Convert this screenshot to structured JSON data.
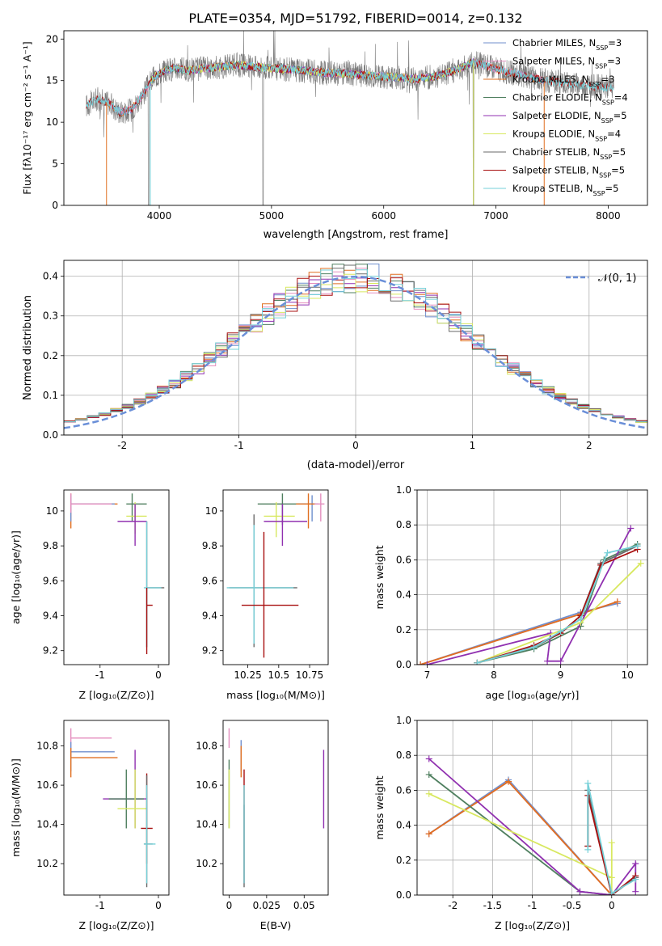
{
  "figure": {
    "title": "PLATE=0354, MJD=51792, FIBERID=0014, z=0.132"
  },
  "model_colors": {
    "Chabrier MILES": "#6f8fce",
    "Salpeter MILES": "#e48fbf",
    "Kroupa MILES": "#e06f20",
    "Chabrier ELODIE": "#4f7f5f",
    "Salpeter ELODIE": "#9030b0",
    "Kroupa ELODIE": "#d8e860",
    "Chabrier STELIB": "#6a6a6a",
    "Salpeter STELIB": "#a81010",
    "Kroupa STELIB": "#76d0d8"
  },
  "chart_data": [
    {
      "id": "spectrum",
      "type": "line",
      "title": "PLATE=0354, MJD=51792, FIBERID=0014, z=0.132",
      "xlabel": "wavelength [Angstrom, rest frame]",
      "ylabel": "Flux [fλ10⁻¹⁷ erg cm⁻² s⁻¹ A⁻¹]",
      "xlim": [
        3150,
        8350
      ],
      "ylim": [
        0,
        21
      ],
      "xticks": [
        4000,
        5000,
        6000,
        7000,
        8000
      ],
      "yticks": [
        0,
        5,
        10,
        15,
        20
      ],
      "grid": false,
      "legend_placement": "right",
      "legend": [
        "Chabrier MILES, N_SSP=3",
        "Salpeter MILES, N_SSP=3",
        "Kroupa MILES, N_SSP=3",
        "Chabrier ELODIE, N_SSP=4",
        "Salpeter ELODIE, N_SSP=5",
        "Kroupa ELODIE, N_SSP=4",
        "Chabrier STELIB, N_SSP=5",
        "Salpeter STELIB, N_SSP=5",
        "Kroupa STELIB, N_SSP=5"
      ],
      "continuum": {
        "x": [
          3350,
          3450,
          3550,
          3650,
          3750,
          3850,
          3950,
          4050,
          4150,
          4250,
          4350,
          4500,
          4700,
          4900,
          5100,
          5300,
          5500,
          5700,
          5900,
          6100,
          6300,
          6500,
          6700,
          6800,
          6900,
          7000,
          7100,
          7200,
          7400,
          7600,
          7800,
          8000,
          8050
        ],
        "y": [
          12.0,
          12.8,
          12.3,
          11.2,
          11.5,
          13.2,
          15.4,
          16.2,
          16.5,
          16.2,
          16.4,
          16.6,
          16.9,
          16.6,
          16.4,
          16.2,
          15.9,
          15.8,
          15.6,
          15.4,
          15.2,
          15.6,
          16.6,
          17.2,
          16.8,
          16.4,
          16.0,
          15.8,
          15.1,
          14.7,
          14.4,
          14.2,
          14.1
        ]
      }
    },
    {
      "id": "residuals",
      "type": "line",
      "xlabel": "(data-model)/error",
      "ylabel": "Normed distribution",
      "xlim": [
        -2.5,
        2.5
      ],
      "ylim": [
        0,
        0.44
      ],
      "xticks": [
        -2,
        -1,
        0,
        1,
        2
      ],
      "yticks": [
        0.0,
        0.1,
        0.2,
        0.3,
        0.4
      ],
      "grid": true,
      "legend_placement": "top-right",
      "legend": [
        "𝒩(0, 1)"
      ],
      "series": [
        {
          "name": "𝒩(0, 1)",
          "style": "dashed",
          "color": "#6a8fd8",
          "mean": 0,
          "sigma": 1
        }
      ]
    },
    {
      "id": "age-vs-Z",
      "type": "scatter",
      "xlabel": "Z [log₁₀(Z/Z⊙)]",
      "ylabel": "age  [log₁₀(age/yr)]",
      "xlim": [
        -1.62,
        0.18
      ],
      "ylim": [
        9.12,
        10.12
      ],
      "xticks": [
        -1,
        0
      ],
      "yticks": [
        9.2,
        9.4,
        9.6,
        9.8,
        10.0
      ],
      "grid": false,
      "points": [
        {
          "model": "Kroupa MILES",
          "x": -1.5,
          "y": 10.04,
          "xerr": [
            0.0,
            0.8
          ],
          "yerr": [
            0.14,
            0.06
          ]
        },
        {
          "model": "Chabrier MILES",
          "x": -1.5,
          "y": 10.04,
          "xerr": [
            0.0,
            0.75
          ],
          "yerr": [
            0.1,
            0.05
          ]
        },
        {
          "model": "Salpeter MILES",
          "x": -1.5,
          "y": 10.04,
          "xerr": [
            0.0,
            0.7
          ],
          "yerr": [
            0.05,
            0.06
          ]
        },
        {
          "model": "Chabrier ELODIE",
          "x": -0.45,
          "y": 10.04,
          "xerr": [
            0.1,
            0.25
          ],
          "yerr": [
            0.1,
            0.06
          ]
        },
        {
          "model": "Kroupa ELODIE",
          "x": -0.4,
          "y": 9.97,
          "xerr": [
            0.15,
            0.2
          ],
          "yerr": [
            0.1,
            0.08
          ]
        },
        {
          "model": "Salpeter ELODIE",
          "x": -0.4,
          "y": 9.94,
          "xerr": [
            0.3,
            0.2
          ],
          "yerr": [
            0.14,
            0.1
          ]
        },
        {
          "model": "Chabrier STELIB",
          "x": -0.2,
          "y": 9.56,
          "xerr": [
            0.0,
            0.3
          ],
          "yerr": [
            0.34,
            0.38
          ]
        },
        {
          "model": "Kroupa STELIB",
          "x": -0.2,
          "y": 9.56,
          "xerr": [
            0.05,
            0.25
          ],
          "yerr": [
            0.34,
            0.38
          ]
        },
        {
          "model": "Salpeter STELIB",
          "x": -0.2,
          "y": 9.46,
          "xerr": [
            0.0,
            0.1
          ],
          "yerr": [
            0.28,
            0.1
          ]
        }
      ]
    },
    {
      "id": "age-vs-mass",
      "type": "scatter",
      "xlabel": "mass [log₁₀(M/M⊙)]",
      "ylabel": "",
      "xlim": [
        10.05,
        10.9
      ],
      "ylim": [
        9.12,
        10.12
      ],
      "xticks": [
        10.25,
        10.5,
        10.75
      ],
      "yticks": [
        9.2,
        9.4,
        9.6,
        9.8,
        10.0
      ],
      "grid": false,
      "points": [
        {
          "model": "Chabrier STELIB",
          "x": 10.3,
          "y": 9.56,
          "xerr": [
            0.2,
            0.35
          ],
          "yerr": [
            0.34,
            0.42
          ]
        },
        {
          "model": "Kroupa STELIB",
          "x": 10.3,
          "y": 9.56,
          "xerr": [
            0.22,
            0.32
          ],
          "yerr": [
            0.32,
            0.36
          ]
        },
        {
          "model": "Salpeter STELIB",
          "x": 10.38,
          "y": 9.46,
          "xerr": [
            0.18,
            0.28
          ],
          "yerr": [
            0.3,
            0.42
          ]
        },
        {
          "model": "Chabrier ELODIE",
          "x": 10.53,
          "y": 10.04,
          "xerr": [
            0.2,
            0.25
          ],
          "yerr": [
            0.12,
            0.06
          ]
        },
        {
          "model": "Kroupa ELODIE",
          "x": 10.48,
          "y": 9.97,
          "xerr": [
            0.1,
            0.15
          ],
          "yerr": [
            0.12,
            0.08
          ]
        },
        {
          "model": "Salpeter ELODIE",
          "x": 10.53,
          "y": 9.94,
          "xerr": [
            0.15,
            0.2
          ],
          "yerr": [
            0.14,
            0.1
          ]
        },
        {
          "model": "Chabrier MILES",
          "x": 10.77,
          "y": 10.04,
          "xerr": [
            0.1,
            0.05
          ],
          "yerr": [
            0.1,
            0.05
          ]
        },
        {
          "model": "Kroupa MILES",
          "x": 10.74,
          "y": 10.04,
          "xerr": [
            0.1,
            0.06
          ],
          "yerr": [
            0.14,
            0.06
          ]
        },
        {
          "model": "Salpeter MILES",
          "x": 10.84,
          "y": 10.04,
          "xerr": [
            0.05,
            0.03
          ],
          "yerr": [
            0.1,
            0.06
          ]
        }
      ]
    },
    {
      "id": "weight-vs-age",
      "type": "line",
      "xlabel": "age  [log₁₀(age/yr)]",
      "ylabel": "mass weight",
      "xlim": [
        6.85,
        10.3
      ],
      "ylim": [
        0,
        1.0
      ],
      "xticks": [
        7,
        8,
        9,
        10
      ],
      "yticks": [
        0.0,
        0.2,
        0.4,
        0.6,
        0.8,
        1.0
      ],
      "grid": true,
      "series": [
        {
          "model": "Chabrier MILES",
          "x": [
            6.9,
            9.3,
            9.85
          ],
          "y": [
            0.0,
            0.3,
            0.35
          ]
        },
        {
          "model": "Salpeter MILES",
          "x": [
            6.9,
            9.3,
            9.85
          ],
          "y": [
            0.0,
            0.29,
            0.36
          ]
        },
        {
          "model": "Kroupa MILES",
          "x": [
            6.9,
            9.3,
            9.85
          ],
          "y": [
            0.0,
            0.29,
            0.36
          ]
        },
        {
          "model": "Chabrier ELODIE",
          "x": [
            7.75,
            8.6,
            9.3,
            9.65,
            10.15
          ],
          "y": [
            0.01,
            0.09,
            0.22,
            0.6,
            0.69
          ]
        },
        {
          "model": "Salpeter ELODIE",
          "x": [
            7.0,
            8.85,
            8.8,
            9.0,
            10.05
          ],
          "y": [
            0.0,
            0.18,
            0.02,
            0.02,
            0.78
          ]
        },
        {
          "model": "Kroupa ELODIE",
          "x": [
            7.75,
            9.3,
            10.2
          ],
          "y": [
            0.01,
            0.24,
            0.58
          ]
        },
        {
          "model": "Chabrier STELIB",
          "x": [
            7.75,
            8.6,
            9.0,
            9.3,
            9.6,
            10.15
          ],
          "y": [
            0.01,
            0.1,
            0.18,
            0.28,
            0.58,
            0.68
          ]
        },
        {
          "model": "Salpeter STELIB",
          "x": [
            7.75,
            8.6,
            9.0,
            9.3,
            9.6,
            10.15
          ],
          "y": [
            0.01,
            0.11,
            0.18,
            0.28,
            0.57,
            0.66
          ]
        },
        {
          "model": "Kroupa STELIB",
          "x": [
            7.75,
            8.6,
            9.0,
            9.3,
            9.7,
            10.15
          ],
          "y": [
            0.01,
            0.1,
            0.19,
            0.26,
            0.64,
            0.68
          ]
        }
      ]
    },
    {
      "id": "mass-vs-Z",
      "type": "scatter",
      "xlabel": "Z [log₁₀(Z/Z⊙)]",
      "ylabel": "mass [log₁₀(M/M⊙)]",
      "xlim": [
        -1.62,
        0.18
      ],
      "ylim": [
        10.04,
        10.93
      ],
      "xticks": [
        -1,
        0
      ],
      "yticks": [
        10.2,
        10.4,
        10.6,
        10.8
      ],
      "grid": false,
      "points": [
        {
          "model": "Salpeter MILES",
          "x": -1.5,
          "y": 10.84,
          "xerr": [
            0.0,
            0.7
          ],
          "yerr": [
            0.1,
            0.05
          ]
        },
        {
          "model": "Chabrier MILES",
          "x": -1.5,
          "y": 10.77,
          "xerr": [
            0.0,
            0.75
          ],
          "yerr": [
            0.1,
            0.05
          ]
        },
        {
          "model": "Kroupa MILES",
          "x": -1.5,
          "y": 10.74,
          "xerr": [
            0.0,
            0.8
          ],
          "yerr": [
            0.1,
            0.05
          ]
        },
        {
          "model": "Salpeter ELODIE",
          "x": -0.4,
          "y": 10.53,
          "xerr": [
            0.55,
            0.2
          ],
          "yerr": [
            0.15,
            0.25
          ]
        },
        {
          "model": "Chabrier ELODIE",
          "x": -0.55,
          "y": 10.53,
          "xerr": [
            0.3,
            0.3
          ],
          "yerr": [
            0.15,
            0.15
          ]
        },
        {
          "model": "Kroupa ELODIE",
          "x": -0.4,
          "y": 10.48,
          "xerr": [
            0.3,
            0.2
          ],
          "yerr": [
            0.1,
            0.2
          ]
        },
        {
          "model": "Salpeter STELIB",
          "x": -0.2,
          "y": 10.38,
          "xerr": [
            0.1,
            0.1
          ],
          "yerr": [
            0.18,
            0.28
          ]
        },
        {
          "model": "Chabrier STELIB",
          "x": -0.2,
          "y": 10.3,
          "xerr": [
            0.05,
            0.1
          ],
          "yerr": [
            0.22,
            0.35
          ]
        },
        {
          "model": "Kroupa STELIB",
          "x": -0.2,
          "y": 10.3,
          "xerr": [
            0.05,
            0.15
          ],
          "yerr": [
            0.2,
            0.3
          ]
        }
      ]
    },
    {
      "id": "mass-vs-ebv",
      "type": "scatter",
      "xlabel": "E(B-V)",
      "ylabel": "",
      "xlim": [
        -0.004,
        0.066
      ],
      "ylim": [
        10.04,
        10.93
      ],
      "xticks": [
        0.0,
        0.025,
        0.05
      ],
      "yticks": [
        10.2,
        10.4,
        10.6,
        10.8
      ],
      "grid": false,
      "points": [
        {
          "model": "Salpeter MILES",
          "x": 0.0,
          "y": 10.84,
          "yerr": [
            0.05,
            0.05
          ]
        },
        {
          "model": "Chabrier ELODIE",
          "x": 0.0,
          "y": 10.53,
          "yerr": [
            0.15,
            0.2
          ]
        },
        {
          "model": "Kroupa ELODIE",
          "x": 0.0,
          "y": 10.48,
          "yerr": [
            0.1,
            0.2
          ]
        },
        {
          "model": "Chabrier MILES",
          "x": 0.008,
          "y": 10.77,
          "yerr": [
            0.1,
            0.06
          ]
        },
        {
          "model": "Kroupa MILES",
          "x": 0.008,
          "y": 10.74,
          "yerr": [
            0.1,
            0.06
          ]
        },
        {
          "model": "Salpeter STELIB",
          "x": 0.01,
          "y": 10.38,
          "yerr": [
            0.28,
            0.3
          ]
        },
        {
          "model": "Chabrier STELIB",
          "x": 0.01,
          "y": 10.3,
          "yerr": [
            0.22,
            0.2
          ]
        },
        {
          "model": "Kroupa STELIB",
          "x": 0.01,
          "y": 10.3,
          "yerr": [
            0.2,
            0.3
          ]
        },
        {
          "model": "Salpeter ELODIE",
          "x": 0.063,
          "y": 10.53,
          "yerr": [
            0.15,
            0.25
          ]
        }
      ]
    },
    {
      "id": "weight-vs-Z",
      "type": "line",
      "xlabel": "Z [log₁₀(Z/Z⊙)]",
      "ylabel": "mass weight",
      "xlim": [
        -2.45,
        0.45
      ],
      "ylim": [
        0,
        1.0
      ],
      "xticks": [
        -2.0,
        -1.5,
        -1.0,
        -0.5,
        0.0
      ],
      "yticks": [
        0.0,
        0.2,
        0.4,
        0.6,
        0.8,
        1.0
      ],
      "grid": true,
      "series": [
        {
          "model": "Chabrier MILES",
          "x": [
            -2.3,
            -1.3,
            0.0
          ],
          "y": [
            0.35,
            0.66,
            0.0
          ]
        },
        {
          "model": "Salpeter MILES",
          "x": [
            -2.3,
            -1.3,
            0.0
          ],
          "y": [
            0.35,
            0.65,
            0.0
          ]
        },
        {
          "model": "Kroupa MILES",
          "x": [
            -2.3,
            -1.3,
            0.0
          ],
          "y": [
            0.35,
            0.65,
            0.0
          ]
        },
        {
          "model": "Chabrier ELODIE",
          "x": [
            -2.3,
            -0.4,
            0.0
          ],
          "y": [
            0.69,
            0.02,
            0.0
          ]
        },
        {
          "model": "Salpeter ELODIE",
          "x": [
            -2.3,
            -0.4,
            0.0,
            0.3,
            0.3
          ],
          "y": [
            0.78,
            0.02,
            0.0,
            0.18,
            0.02
          ]
        },
        {
          "model": "Kroupa ELODIE",
          "x": [
            -2.3,
            0.0,
            0.0,
            0.0
          ],
          "y": [
            0.58,
            0.1,
            0.3,
            0.01
          ]
        },
        {
          "model": "Chabrier STELIB",
          "x": [
            -0.3,
            -0.3,
            0.0,
            0.3
          ],
          "y": [
            0.28,
            0.6,
            0.0,
            0.1
          ]
        },
        {
          "model": "Salpeter STELIB",
          "x": [
            -0.3,
            -0.3,
            0.0,
            0.3
          ],
          "y": [
            0.28,
            0.57,
            0.0,
            0.11
          ]
        },
        {
          "model": "Kroupa STELIB",
          "x": [
            -0.3,
            -0.3,
            0.0,
            0.3
          ],
          "y": [
            0.26,
            0.64,
            0.01,
            0.09
          ]
        }
      ]
    }
  ]
}
